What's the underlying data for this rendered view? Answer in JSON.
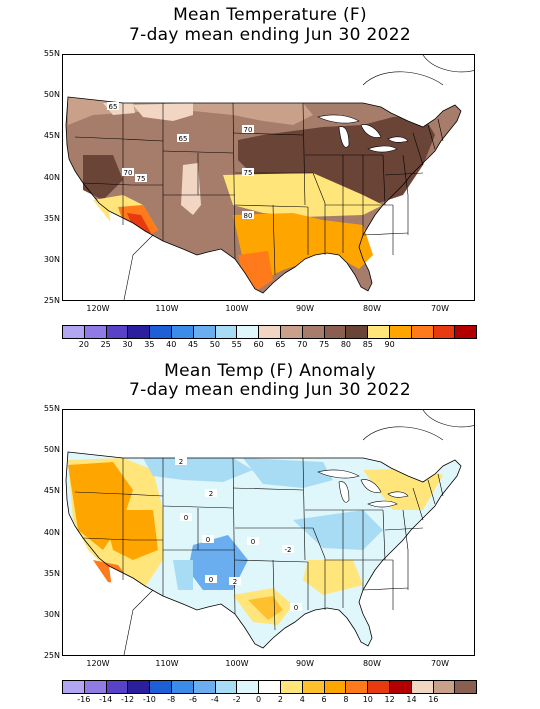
{
  "map1": {
    "title_line1": "Mean Temperature (F)",
    "title_line2": "7-day mean ending Jun 30 2022",
    "lat_labels": [
      "55N",
      "50N",
      "45N",
      "40N",
      "35N",
      "30N",
      "25N"
    ],
    "lon_labels": [
      "120W",
      "110W",
      "100W",
      "90W",
      "80W",
      "70W"
    ],
    "contour_labels": [
      "65",
      "65",
      "70",
      "70",
      "75",
      "75",
      "80"
    ],
    "legend_colors": [
      "#b3a6f0",
      "#8f7ae6",
      "#5a42c8",
      "#2c1f9e",
      "#1f5fd6",
      "#3b8be8",
      "#6aaef0",
      "#a8dcf5",
      "#dff6fa",
      "#f2d6c4",
      "#c9a08a",
      "#a67c6a",
      "#8a5e50",
      "#6b4438",
      "#ffe57a",
      "#ffa500",
      "#ff7a1a",
      "#e83a10",
      "#b20000"
    ],
    "legend_labels": [
      "20",
      "25",
      "30",
      "35",
      "40",
      "45",
      "50",
      "55",
      "60",
      "65",
      "70",
      "75",
      "80",
      "85",
      "90"
    ],
    "region_colors": {
      "base": "#a67c6a",
      "north": "#c9a08a",
      "light": "#f2d6c4",
      "dark": "#6b4438",
      "yellow": "#ffe57a",
      "orange": "#ffa500",
      "deep_orange": "#ff7a1a",
      "red": "#e83a10"
    }
  },
  "map2": {
    "title_line1": "Mean Temp (F) Anomaly",
    "title_line2": "7-day mean ending Jun 30 2022",
    "lat_labels": [
      "55N",
      "50N",
      "45N",
      "40N",
      "35N",
      "30N",
      "25N"
    ],
    "lon_labels": [
      "120W",
      "110W",
      "100W",
      "90W",
      "80W",
      "70W"
    ],
    "contour_labels": [
      "2",
      "2",
      "0",
      "0",
      "0",
      "-2",
      "0",
      "2",
      "0"
    ],
    "legend_colors": [
      "#b3a6f0",
      "#8f7ae6",
      "#5a42c8",
      "#2c1f9e",
      "#1f5fd6",
      "#3b8be8",
      "#6aaef0",
      "#a8dcf5",
      "#dff6fa",
      "#ffffff",
      "#ffe57a",
      "#ffc030",
      "#ffa500",
      "#ff7a1a",
      "#e83a10",
      "#b20000",
      "#f2d6c4",
      "#c9a08a",
      "#8a5e50"
    ],
    "legend_labels": [
      "-16",
      "-14",
      "-12",
      "-10",
      "-8",
      "-6",
      "-4",
      "-2",
      "0",
      "2",
      "4",
      "6",
      "8",
      "10",
      "12",
      "14",
      "16"
    ],
    "region_colors": {
      "base": "#dff6fa",
      "blue": "#a8dcf5",
      "mid_blue": "#6aaef0",
      "yellow": "#ffe57a",
      "orange": "#ffa500",
      "light_orange": "#ffc030",
      "deep_orange": "#ff7a1a"
    }
  }
}
